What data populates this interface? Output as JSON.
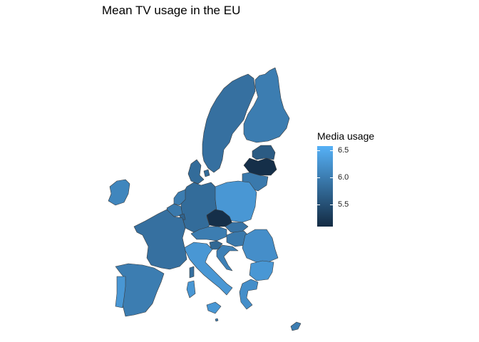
{
  "chart_data": {
    "type": "choropleth",
    "title": "Mean TV usage in the EU",
    "legend": {
      "title": "Media usage",
      "ticks": [
        "6.5",
        "6.0",
        "5.5"
      ],
      "scale_min": 5.05,
      "scale_max": 6.6,
      "color_low": "#132b43",
      "color_high": "#56b1f7",
      "placement": "right"
    },
    "regions": [
      {
        "id": "sweden",
        "value": 5.85
      },
      {
        "id": "finland",
        "value": 6.0
      },
      {
        "id": "estonia",
        "value": 5.6
      },
      {
        "id": "latvia",
        "value": 5.1
      },
      {
        "id": "lithuania",
        "value": 5.95
      },
      {
        "id": "denmark",
        "value": 5.8
      },
      {
        "id": "ireland",
        "value": 6.1
      },
      {
        "id": "netherlands",
        "value": 6.0
      },
      {
        "id": "belgium",
        "value": 5.95
      },
      {
        "id": "luxembourg",
        "value": 5.7
      },
      {
        "id": "germany",
        "value": 5.8
      },
      {
        "id": "poland",
        "value": 6.3
      },
      {
        "id": "czechia",
        "value": 5.1
      },
      {
        "id": "slovakia",
        "value": 5.9
      },
      {
        "id": "austria",
        "value": 6.0
      },
      {
        "id": "hungary",
        "value": 5.95
      },
      {
        "id": "slovenia",
        "value": 5.75
      },
      {
        "id": "croatia",
        "value": 6.05
      },
      {
        "id": "romania",
        "value": 6.2
      },
      {
        "id": "bulgaria",
        "value": 6.3
      },
      {
        "id": "greece",
        "value": 6.2
      },
      {
        "id": "cyprus",
        "value": 6.0
      },
      {
        "id": "italy",
        "value": 6.3
      },
      {
        "id": "malta",
        "value": 6.0
      },
      {
        "id": "france",
        "value": 5.85
      },
      {
        "id": "spain",
        "value": 6.0
      },
      {
        "id": "portugal",
        "value": 6.3
      }
    ]
  }
}
